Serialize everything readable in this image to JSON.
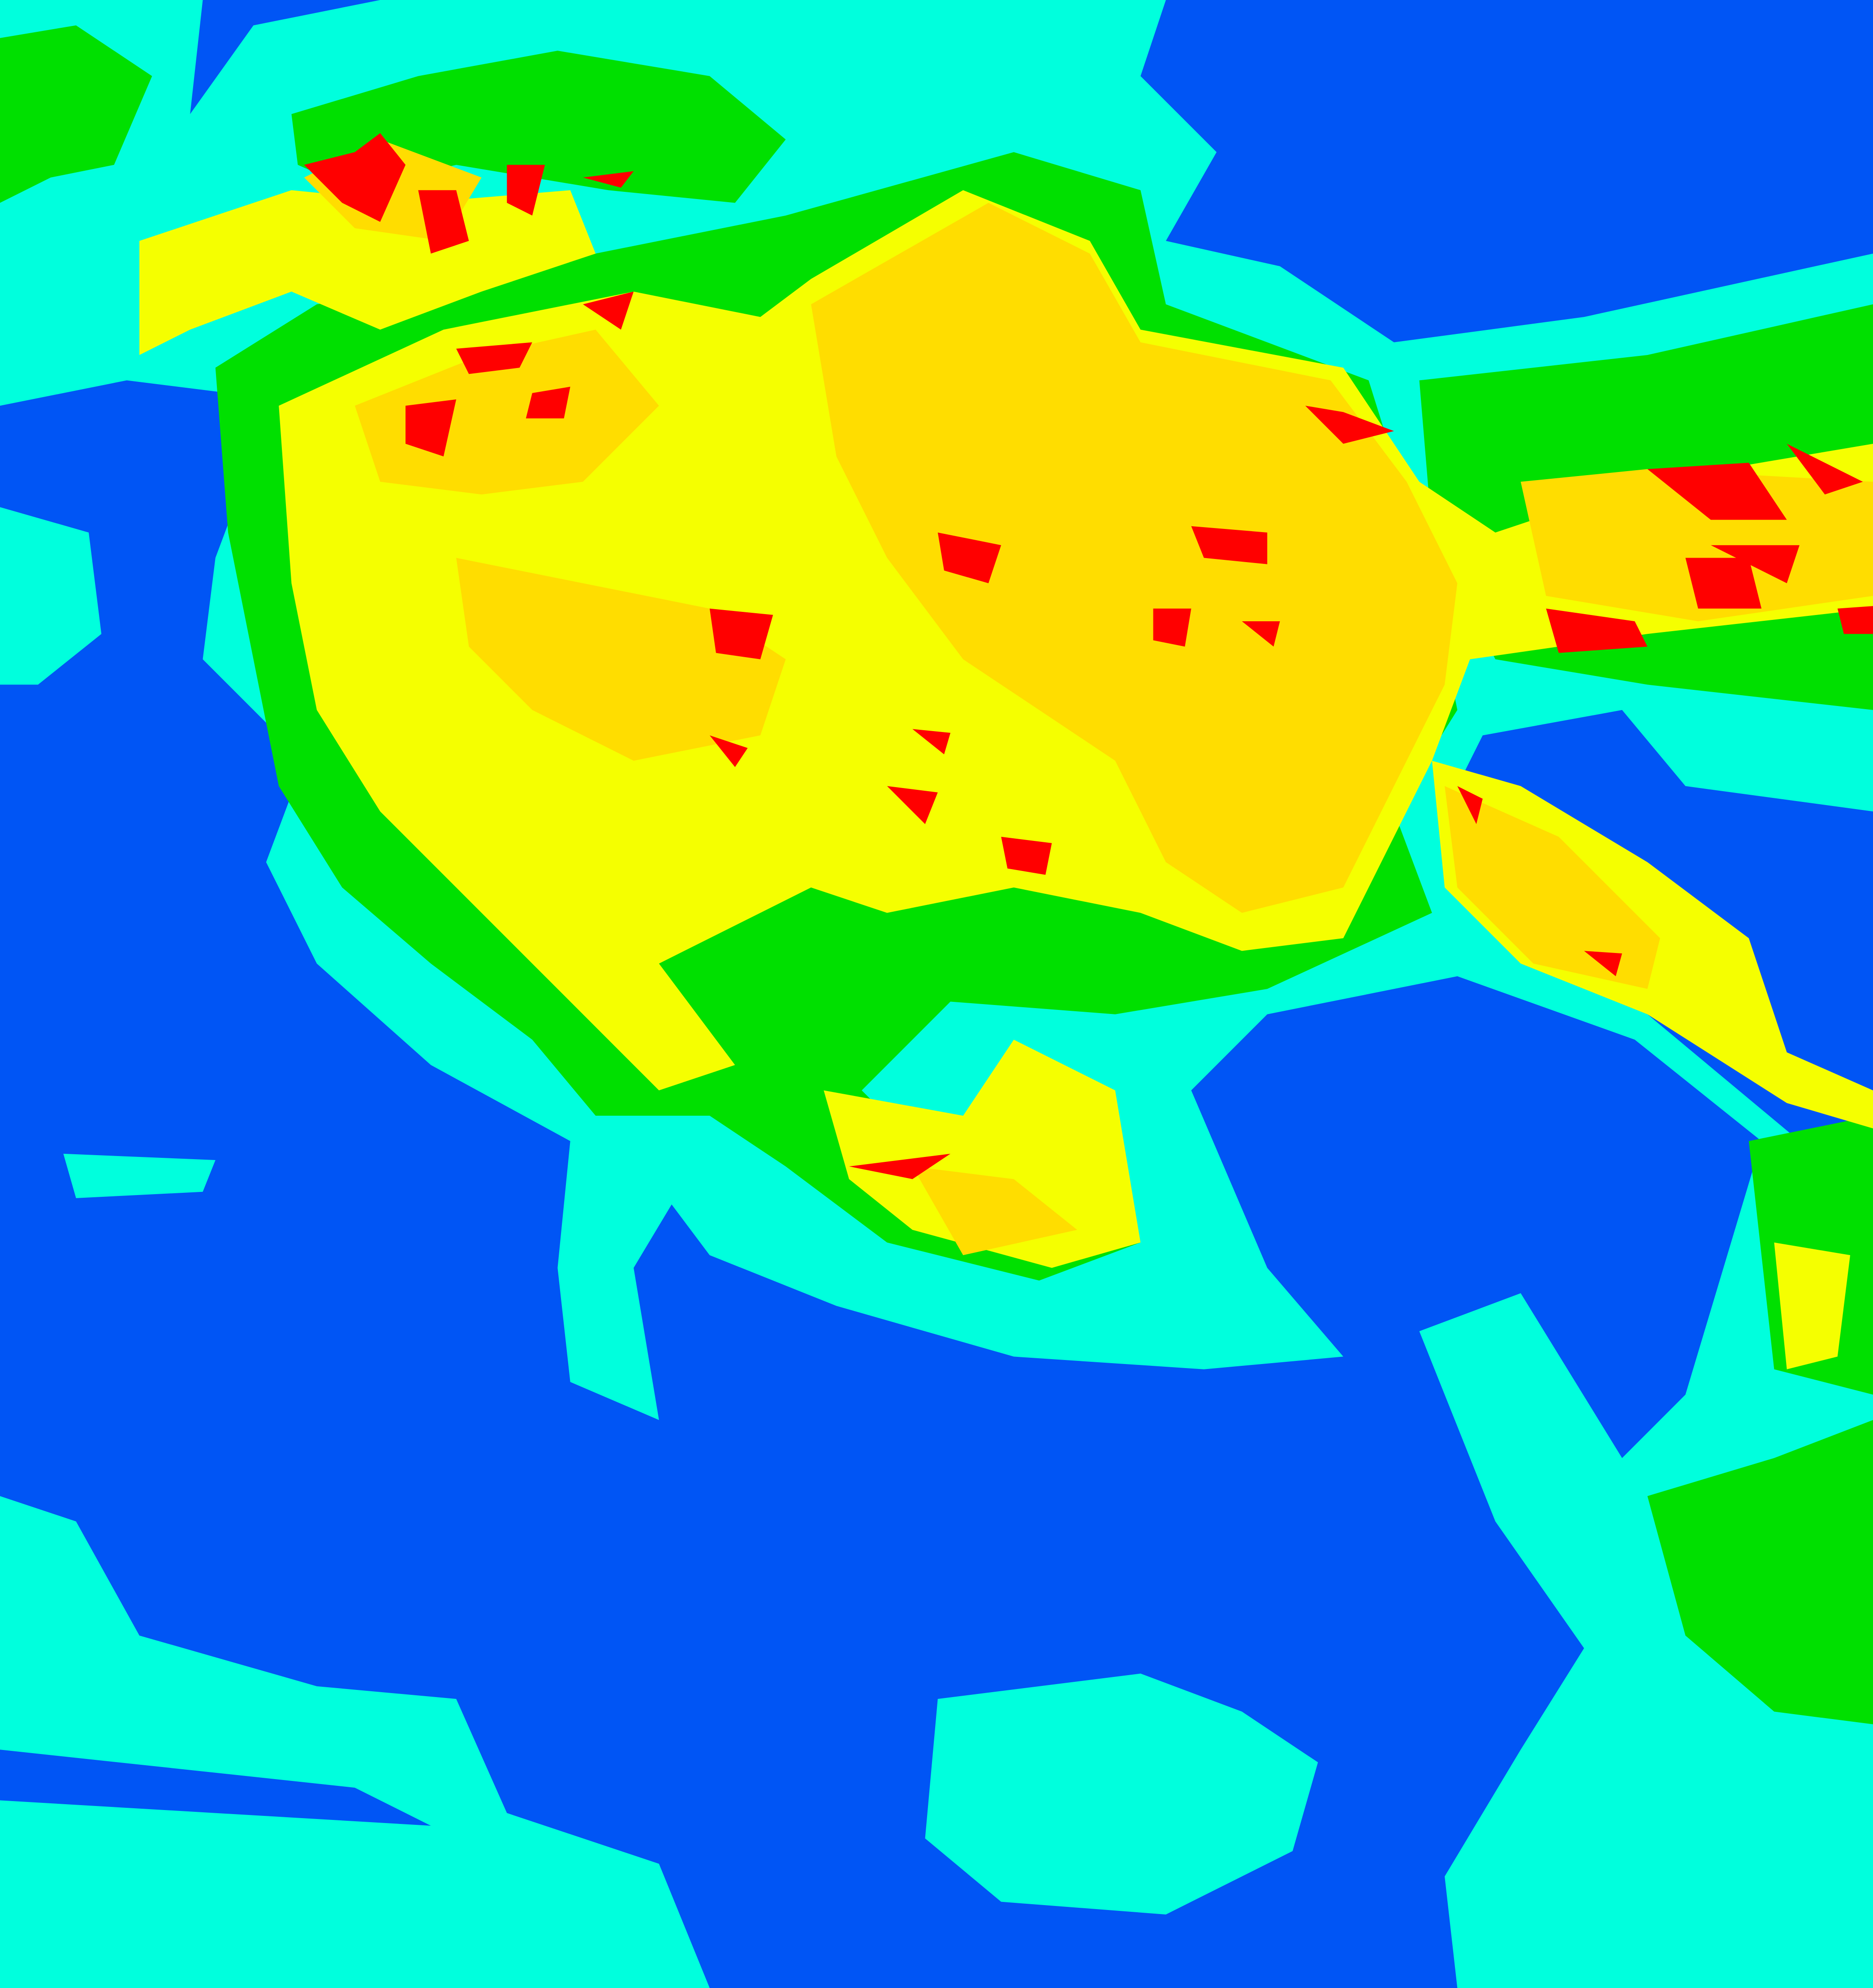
{
  "map": {
    "classes": [
      {
        "key": "class-1",
        "color": "#0055f5"
      },
      {
        "key": "class-2",
        "color": "#00ffdd"
      },
      {
        "key": "class-3",
        "color": "#00e000"
      },
      {
        "key": "class-4",
        "color": "#f5ff00"
      },
      {
        "key": "class-5",
        "color": "#ffdd00"
      },
      {
        "key": "class-6",
        "color": "#ff0000"
      }
    ]
  }
}
